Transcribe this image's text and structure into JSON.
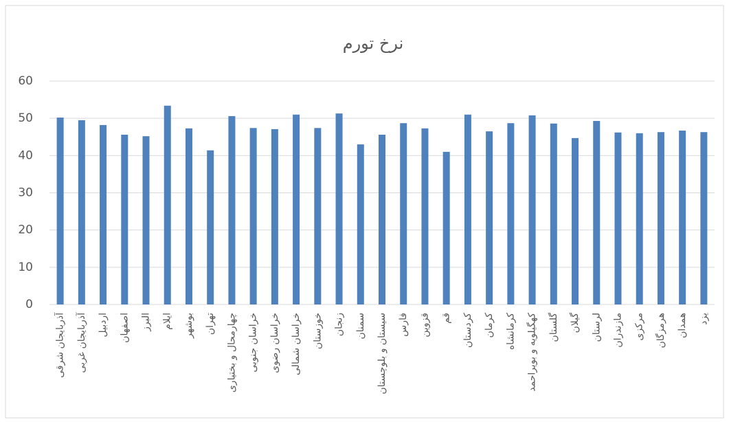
{
  "chart_data": {
    "type": "bar",
    "title": "نرخ تورم",
    "categories": [
      "آذربایجان شرقی",
      "آذربایجان غربی",
      "اردبیل",
      "اصفهان",
      "البرز",
      "ایلام",
      "بوشهر",
      "تهران",
      "چهارمحال و بختیاری",
      "خراسان جنوبی",
      "خراسان رضوی",
      "خراسان شمالی",
      "خوزستان",
      "زنجان",
      "سمنان",
      "سیستان و بلوچستان",
      "فارس",
      "قزوین",
      "قم",
      "کردستان",
      "کرمان",
      "کرمانشاه",
      "کهگیلویه و بویراحمد",
      "گلستان",
      "گیلان",
      "لرستان",
      "مازندران",
      "مرکزی",
      "هرمزگان",
      "همدان",
      "یزد"
    ],
    "values": [
      50.2,
      49.5,
      48.2,
      45.6,
      45.2,
      53.4,
      47.3,
      41.4,
      50.6,
      47.4,
      47.1,
      51.0,
      47.4,
      51.3,
      43.0,
      45.6,
      48.7,
      47.3,
      41.0,
      51.0,
      46.5,
      48.7,
      50.8,
      48.6,
      44.7,
      49.3,
      46.2,
      46.0,
      46.3,
      46.7,
      46.3
    ],
    "color": "#4f81bd",
    "ylim": [
      0,
      60
    ],
    "yticks": [
      0,
      10,
      20,
      30,
      40,
      50,
      60
    ],
    "grid": true
  }
}
